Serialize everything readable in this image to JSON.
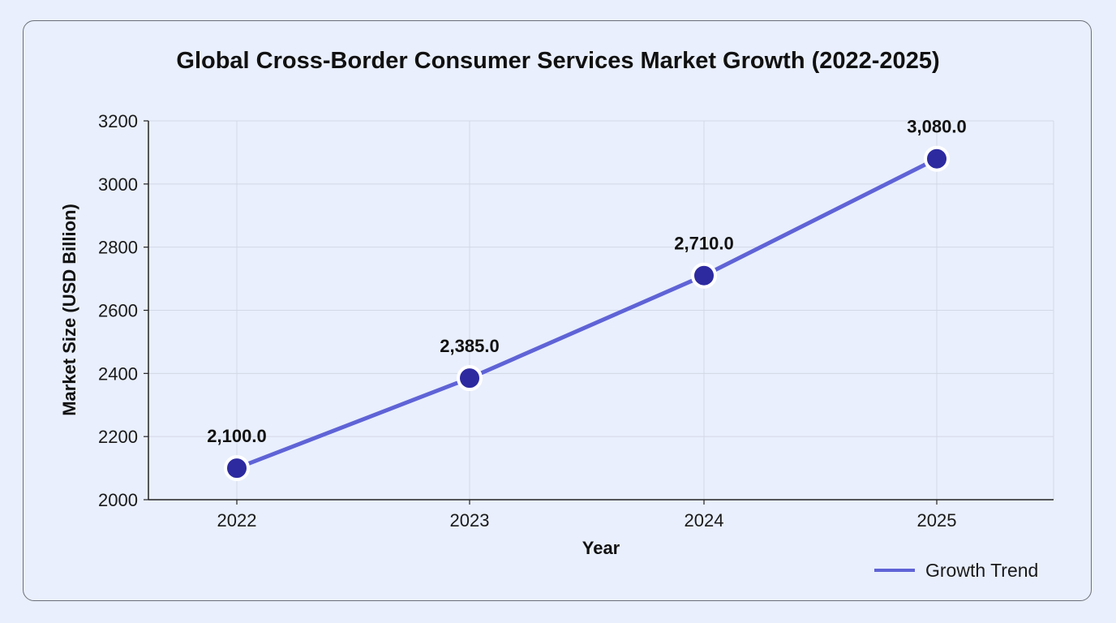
{
  "chart_data": {
    "type": "line",
    "title": "Global Cross-Border Consumer Services Market Growth (2022-2025)",
    "xlabel": "Year",
    "ylabel": "Market Size (USD Billion)",
    "categories": [
      "2022",
      "2023",
      "2024",
      "2025"
    ],
    "series": [
      {
        "name": "Growth Trend",
        "values": [
          2100.0,
          2385.0,
          2710.0,
          3080.0
        ],
        "data_labels": [
          "2,100.0",
          "2,385.0",
          "2,710.0",
          "3,080.0"
        ]
      }
    ],
    "ylim": [
      2000,
      3200
    ],
    "yticks": [
      "2000",
      "2200",
      "2400",
      "2600",
      "2800",
      "3000",
      "3200"
    ],
    "grid": true,
    "legend_position": "bottom-right",
    "colors": {
      "line": "#5f63d6",
      "marker_fill": "#2d2aa0",
      "marker_stroke": "#ffffff",
      "grid": "#d3d8e6",
      "axis": "#222222"
    }
  }
}
